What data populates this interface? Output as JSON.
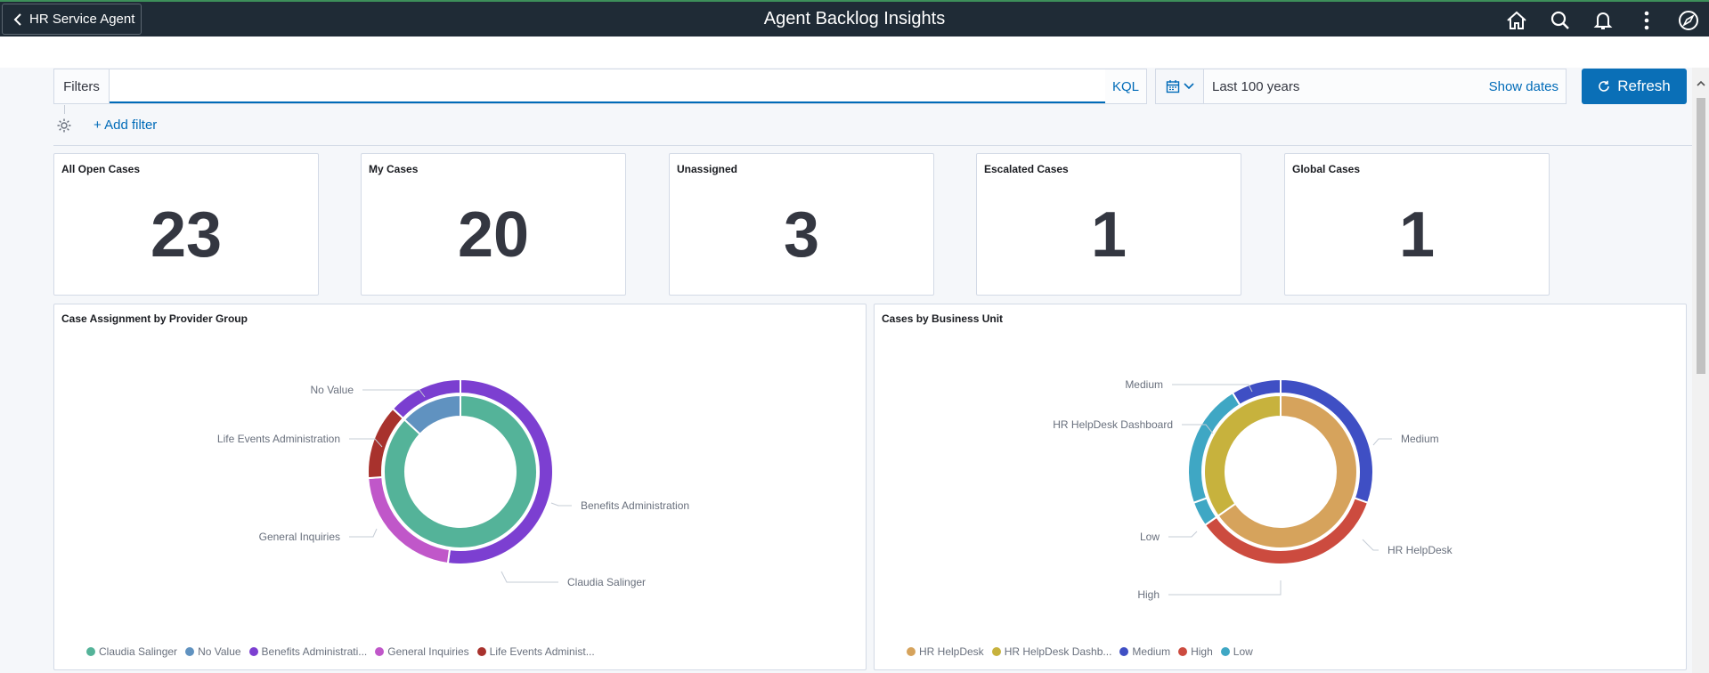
{
  "header": {
    "back_label": "HR Service Agent",
    "title": "Agent Backlog Insights",
    "icons": [
      "home-icon",
      "search-icon",
      "bell-icon",
      "more-vertical-icon",
      "compass-icon"
    ]
  },
  "filters": {
    "label": "Filters",
    "query_value": "",
    "kql_label": "KQL",
    "date_range": "Last 100 years",
    "show_dates_label": "Show dates",
    "refresh_label": "Refresh",
    "add_filter_label": "+ Add filter"
  },
  "metrics": [
    {
      "title": "All Open Cases",
      "value": "23"
    },
    {
      "title": "My Cases",
      "value": "20"
    },
    {
      "title": "Unassigned",
      "value": "3"
    },
    {
      "title": "Escalated Cases",
      "value": "1"
    },
    {
      "title": "Global Cases",
      "value": "1"
    }
  ],
  "chart_data": [
    {
      "type": "pie",
      "title": "Case Assignment by Provider Group",
      "inner_ring": {
        "slices": [
          {
            "name": "Claudia Salinger",
            "value": 20,
            "color": "#54b399"
          },
          {
            "name": "No Value",
            "value": 3,
            "color": "#6092c0"
          }
        ]
      },
      "outer_ring": {
        "slices": [
          {
            "name": "Benefits Administration",
            "value": 12,
            "color": "#7c3fd1"
          },
          {
            "name": "General Inquiries",
            "value": 5,
            "color": "#c057c9"
          },
          {
            "name": "Life Events Administration",
            "value": 3,
            "color": "#a8322d"
          },
          {
            "name": "No Value",
            "value": 3,
            "color": "#7a3ed0"
          }
        ]
      },
      "callouts": [
        "No Value",
        "Life Events Administration",
        "General Inquiries",
        "Benefits Administration",
        "Claudia Salinger"
      ],
      "legend": [
        "Claudia Salinger",
        "No Value",
        "Benefits Administrati...",
        "General Inquiries",
        "Life Events Administ..."
      ],
      "legend_colors": [
        "#54b399",
        "#6092c0",
        "#7c3fd1",
        "#c057c9",
        "#a8322d"
      ]
    },
    {
      "type": "pie",
      "title": "Cases by Business Unit",
      "inner_ring": {
        "slices": [
          {
            "name": "HR HelpDesk",
            "value": 15,
            "color": "#d6a35c"
          },
          {
            "name": "HR HelpDesk Dashboard",
            "value": 8,
            "color": "#c7b23d"
          }
        ]
      },
      "outer_ring": {
        "slices": [
          {
            "name": "Medium",
            "value": 7,
            "color": "#3f4fc4"
          },
          {
            "name": "High",
            "value": 8,
            "color": "#cc4b3f"
          },
          {
            "name": "Low",
            "value": 1,
            "color": "#3fa7c4"
          },
          {
            "name": "Low",
            "value": 5,
            "color": "#3fa7c4"
          },
          {
            "name": "Medium",
            "value": 2,
            "color": "#3f4fc4"
          }
        ]
      },
      "callouts": [
        "Medium",
        "HR HelpDesk Dashboard",
        "Medium",
        "HR HelpDesk",
        "Low",
        "High"
      ],
      "legend": [
        "HR HelpDesk",
        "HR HelpDesk Dashb...",
        "Medium",
        "High",
        "Low"
      ],
      "legend_colors": [
        "#d6a35c",
        "#c7b23d",
        "#3f4fc4",
        "#cc4b3f",
        "#3fa7c4"
      ]
    }
  ]
}
